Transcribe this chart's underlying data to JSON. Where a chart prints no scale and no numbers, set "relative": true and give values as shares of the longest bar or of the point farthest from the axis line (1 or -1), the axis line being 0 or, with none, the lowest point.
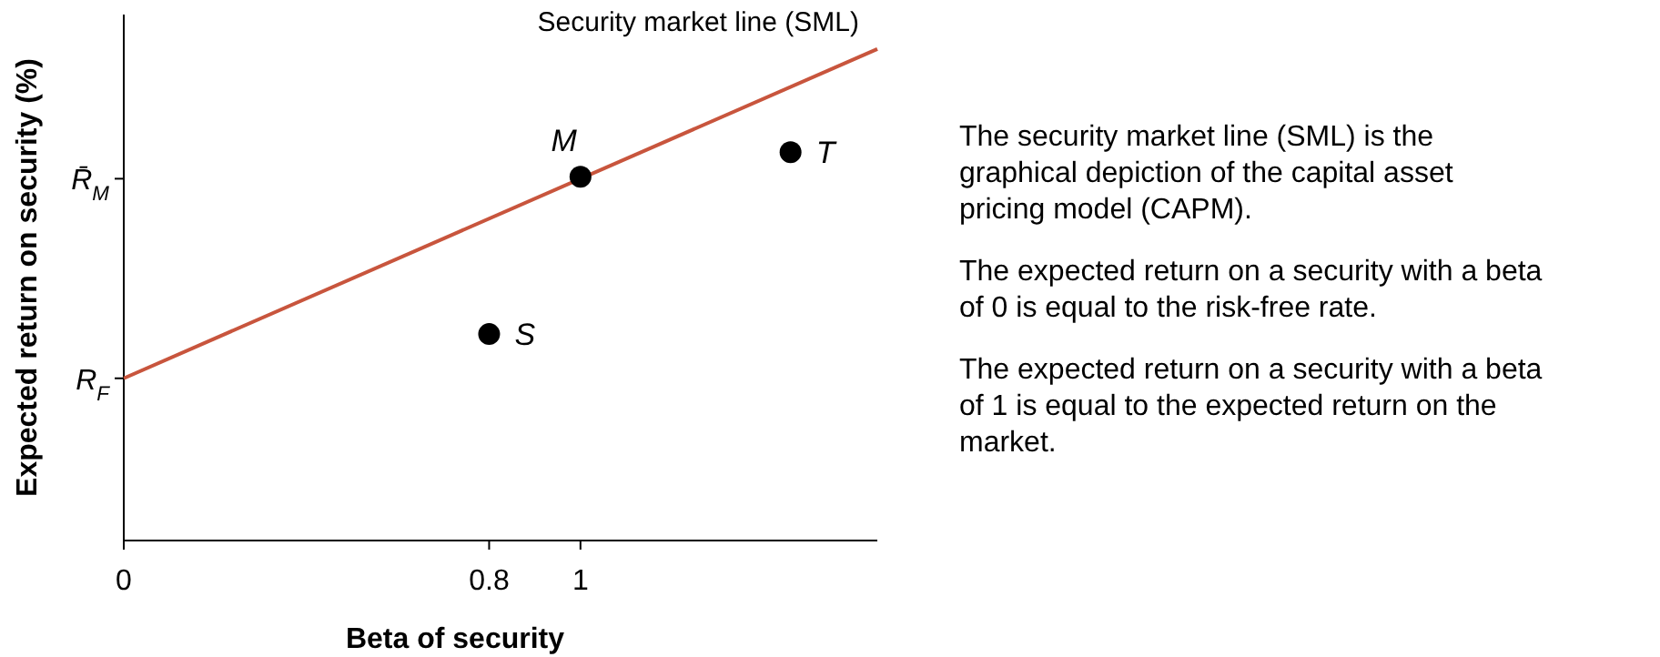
{
  "chart_data": {
    "type": "scatter",
    "relative": true,
    "xlabel": "Beta of security",
    "ylabel": "Expected return on security (%)",
    "xlim": [
      0,
      1.65
    ],
    "xticks": [
      0,
      0.8,
      1
    ],
    "grid": false,
    "legend": false,
    "series": [
      {
        "type": "line",
        "name": "Security market line (SML)",
        "color": "#c8553d",
        "x": [
          0,
          1.65
        ],
        "values": [
          0.33,
          1
        ]
      },
      {
        "color": "#000000",
        "marker": "circle",
        "x": [
          0.8,
          1,
          1.46
        ],
        "values": [
          0.42,
          0.74,
          0.79
        ]
      }
    ],
    "annotations": [
      {
        "text": "M",
        "x": 1,
        "y": 0.74
      },
      {
        "text": "S",
        "x": 0.8,
        "y": 0.42
      },
      {
        "text": "T",
        "x": 1.46,
        "y": 0.79
      },
      "R$_{F}$",
      "R̄$_{M}$",
      "The security market line (SML) is the graphical depiction of the capital asset pricing model (CAPM).",
      "The expected return on a security with a beta of 0 is equal to the risk-free rate.",
      "The expected return on a security with a beta of 1 is equal to the expected return on the market."
    ]
  }
}
